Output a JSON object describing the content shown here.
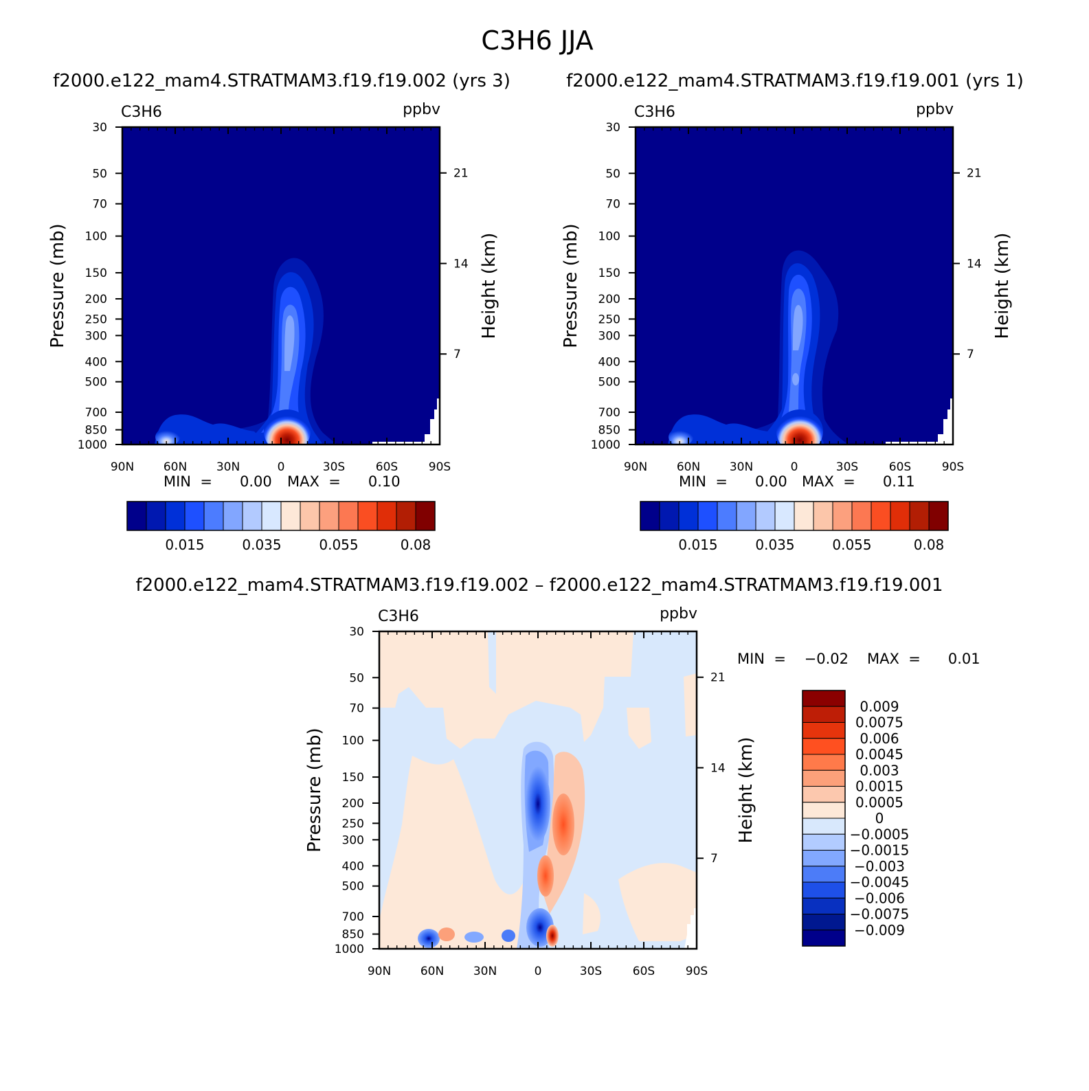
{
  "figure": {
    "title": "C3H6 JJA"
  },
  "panels": [
    {
      "id": "test",
      "run_title": "f2000.e122_mam4.STRATMAM3.f19.f19.002 (yrs 3)",
      "variable": "C3H6",
      "units": "ppbv",
      "min_text": "MIN  =      0.00",
      "max_text": "MAX  =      0.10"
    },
    {
      "id": "control",
      "run_title": "f2000.e122_mam4.STRATMAM3.f19.f19.001 (yrs 1)",
      "variable": "C3H6",
      "units": "ppbv",
      "min_text": "MIN  =      0.00",
      "max_text": "MAX  =      0.11"
    },
    {
      "id": "difference",
      "run_title": "f2000.e122_mam4.STRATMAM3.f19.f19.002 – f2000.e122_mam4.STRATMAM3.f19.f19.001",
      "variable": "C3H6",
      "units": "ppbv",
      "min_text": "MIN  =    −0.02",
      "max_text": "MAX  =      0.01"
    }
  ],
  "axes": {
    "x_tick_labels": [
      "90N",
      "60N",
      "30N",
      "0",
      "30S",
      "60S",
      "90S"
    ],
    "y_label": "Pressure (mb)",
    "y_tick_labels": [
      "30",
      "50",
      "70",
      "100",
      "150",
      "200",
      "250",
      "300",
      "400",
      "500",
      "700",
      "850",
      "1000"
    ],
    "y2_label": "Height (km)",
    "y2_tick_labels": [
      "21",
      "14",
      "7"
    ]
  },
  "colorbars": {
    "field_labels": [
      "0.015",
      "0.035",
      "0.055",
      "0.08"
    ],
    "field_colors": [
      "#00008b",
      "#0018b0",
      "#0030d8",
      "#1e50ff",
      "#4c7cff",
      "#82a6ff",
      "#b2caff",
      "#d8e8ff",
      "#fde8d8",
      "#fcc6aa",
      "#fca07e",
      "#fc7852",
      "#fa4e22",
      "#e02e08",
      "#b21e04",
      "#800000"
    ],
    "diff_labels": [
      "0.009",
      "0.0075",
      "0.006",
      "0.0045",
      "0.003",
      "0.0015",
      "0.0005",
      "0",
      "−0.0005",
      "−0.0015",
      "−0.003",
      "−0.0045",
      "−0.006",
      "−0.0075",
      "−0.009"
    ],
    "diff_colors": [
      "#8b0000",
      "#be1e06",
      "#e6340c",
      "#ff5020",
      "#ff7a4a",
      "#fca07a",
      "#fcc8ae",
      "#fde8d8",
      "#d8e8fc",
      "#b2ccff",
      "#82a8ff",
      "#4c7cf8",
      "#1e50e8",
      "#0830c0",
      "#001890",
      "#00008b"
    ]
  },
  "chart_data": [
    {
      "type": "heatmap",
      "title": "C3H6",
      "units": "ppbv",
      "x_range": [
        "90N",
        "90S"
      ],
      "y_range_mb": [
        1000,
        30
      ],
      "y_scale": "log",
      "contour_levels": [
        0.005,
        0.01,
        0.015,
        0.02,
        0.025,
        0.03,
        0.035,
        0.04,
        0.045,
        0.05,
        0.055,
        0.06,
        0.065,
        0.07,
        0.08
      ],
      "min": 0.0,
      "max": 0.1,
      "features": [
        {
          "lat": -3,
          "p_mb": 280,
          "value": 0.035
        },
        {
          "lat": -6,
          "p_mb": 900,
          "value": 0.1
        },
        {
          "lat": 62,
          "p_mb": 960,
          "value": 0.03
        }
      ]
    },
    {
      "type": "heatmap",
      "title": "C3H6",
      "units": "ppbv",
      "x_range": [
        "90N",
        "90S"
      ],
      "y_range_mb": [
        1000,
        30
      ],
      "y_scale": "log",
      "contour_levels": [
        0.005,
        0.01,
        0.015,
        0.02,
        0.025,
        0.03,
        0.035,
        0.04,
        0.045,
        0.05,
        0.055,
        0.06,
        0.065,
        0.07,
        0.08
      ],
      "min": 0.0,
      "max": 0.11,
      "features": [
        {
          "lat": -1,
          "p_mb": 260,
          "value": 0.033
        },
        {
          "lat": -4,
          "p_mb": 900,
          "value": 0.11
        },
        {
          "lat": 62,
          "p_mb": 960,
          "value": 0.03
        }
      ]
    },
    {
      "type": "heatmap",
      "title": "C3H6",
      "units": "ppbv",
      "x_range": [
        "90N",
        "90S"
      ],
      "y_range_mb": [
        1000,
        30
      ],
      "y_scale": "log",
      "contour_levels": [
        -0.009,
        -0.0075,
        -0.006,
        -0.0045,
        -0.003,
        -0.0015,
        -0.0005,
        0,
        0.0005,
        0.0015,
        0.003,
        0.0045,
        0.006,
        0.0075,
        0.009
      ],
      "min": -0.02,
      "max": 0.01,
      "features": [
        {
          "lat": 3,
          "p_mb": 210,
          "value": -0.006
        },
        {
          "lat": -14,
          "p_mb": 260,
          "value": 0.0045
        },
        {
          "lat": -3,
          "p_mb": 450,
          "value": 0.0045
        },
        {
          "lat": 0,
          "p_mb": 800,
          "value": -0.009
        },
        {
          "lat": -7,
          "p_mb": 900,
          "value": 0.009
        },
        {
          "lat": 61,
          "p_mb": 980,
          "value": -0.009
        }
      ]
    }
  ]
}
